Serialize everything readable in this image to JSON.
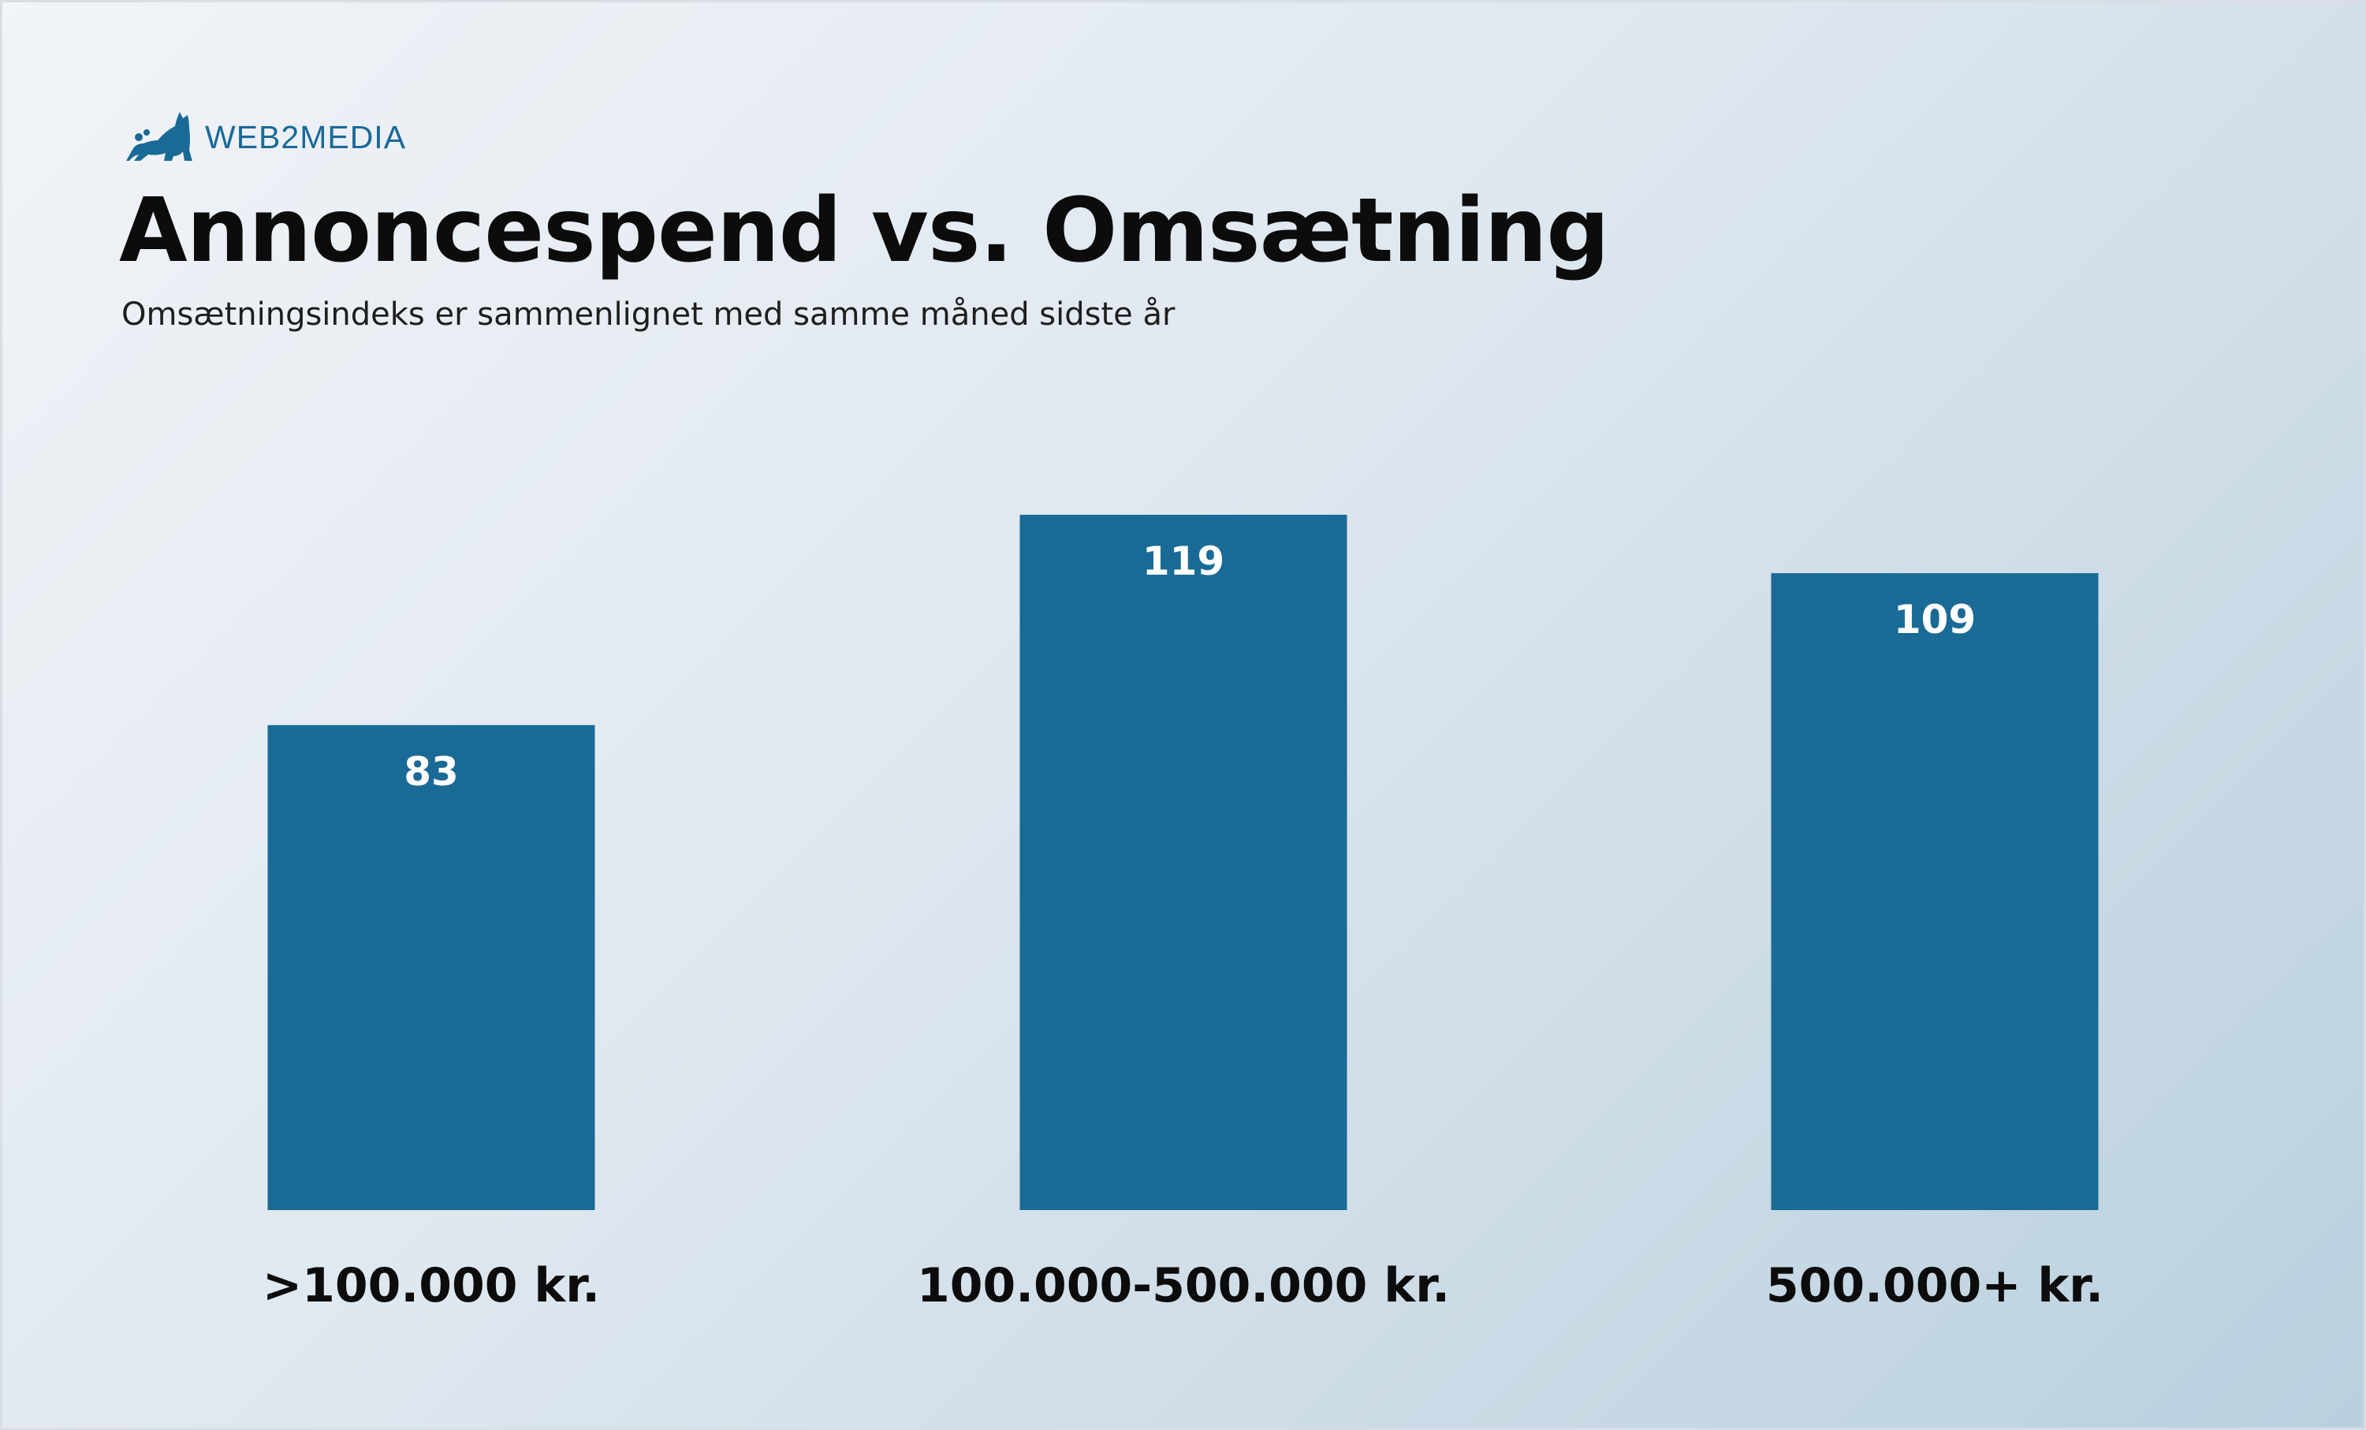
{
  "brand": {
    "logo_text": "WEB2MEDIA",
    "logo_icon": "cat-icon",
    "color": "#1a6a98"
  },
  "chart_data": {
    "type": "bar",
    "title": "Annoncespend vs. Omsætning",
    "subtitle": "Omsætningsindeks er sammenlignet med samme måned sidste år",
    "categories": [
      ">100.000 kr.",
      "100.000-500.000 kr.",
      "500.000+ kr."
    ],
    "values": [
      83,
      119,
      109
    ],
    "data_labels": [
      "83",
      "119",
      "109"
    ],
    "xlabel": "",
    "ylabel": "",
    "ylim": [
      0,
      119
    ],
    "bar_color": "#1a6a96",
    "grid": false,
    "legend": "none"
  }
}
